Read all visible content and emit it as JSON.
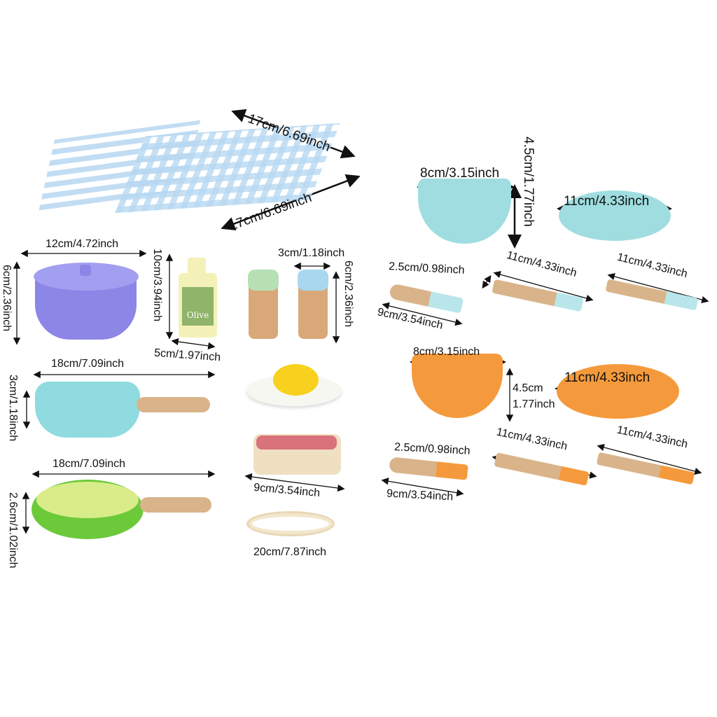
{
  "colors": {
    "blue_set": "#9fdde0",
    "orange_set": "#f59a3c",
    "pot": "#8c86e6",
    "pan": "#8fdbe0",
    "frypan": "#6cc93a",
    "wood": "#d9b48a",
    "towel": "#b8d8f2"
  },
  "labels": {
    "towel_top": "17cm/6.69inch",
    "towel_bottom": "17cm/6.69inch",
    "pot_width": "12cm/4.72inch",
    "pot_height": "6cm/2.36inch",
    "oil_height": "10cm/3.94inch",
    "oil_width": "5cm/1.97inch",
    "oil_brand": "Olive",
    "shaker_width": "3cm/1.18inch",
    "shaker_height": "6cm/2.36inch",
    "pan_length": "18cm/7.09inch",
    "pan_height": "3cm/1.18inch",
    "frypan_length": "18cm/7.09inch",
    "frypan_height": "2.6cm/1.02inch",
    "steak_width": "9cm/3.54inch",
    "noodle_length": "20cm/7.87inch",
    "blue_bowl_width": "8cm/3.15inch",
    "blue_bowl_height": "4.5cm/1.77inch",
    "blue_plate_width": "11cm/4.33inch",
    "blue_spoon_width": "2.5cm/0.98inch",
    "blue_spoon_length": "9cm/3.54inch",
    "blue_knife_length": "11cm/4.33inch",
    "blue_fork_length": "11cm/4.33inch",
    "orange_bowl_width": "8cm/3.15inch",
    "orange_bowl_height_cm": "4.5cm",
    "orange_bowl_height_in": "1.77inch",
    "orange_plate_width": "11cm/4.33inch",
    "orange_spoon_width": "2.5cm/0.98inch",
    "orange_spoon_length": "9cm/3.54inch",
    "orange_knife_length": "11cm/4.33inch",
    "orange_fork_length": "11cm/4.33inch"
  }
}
